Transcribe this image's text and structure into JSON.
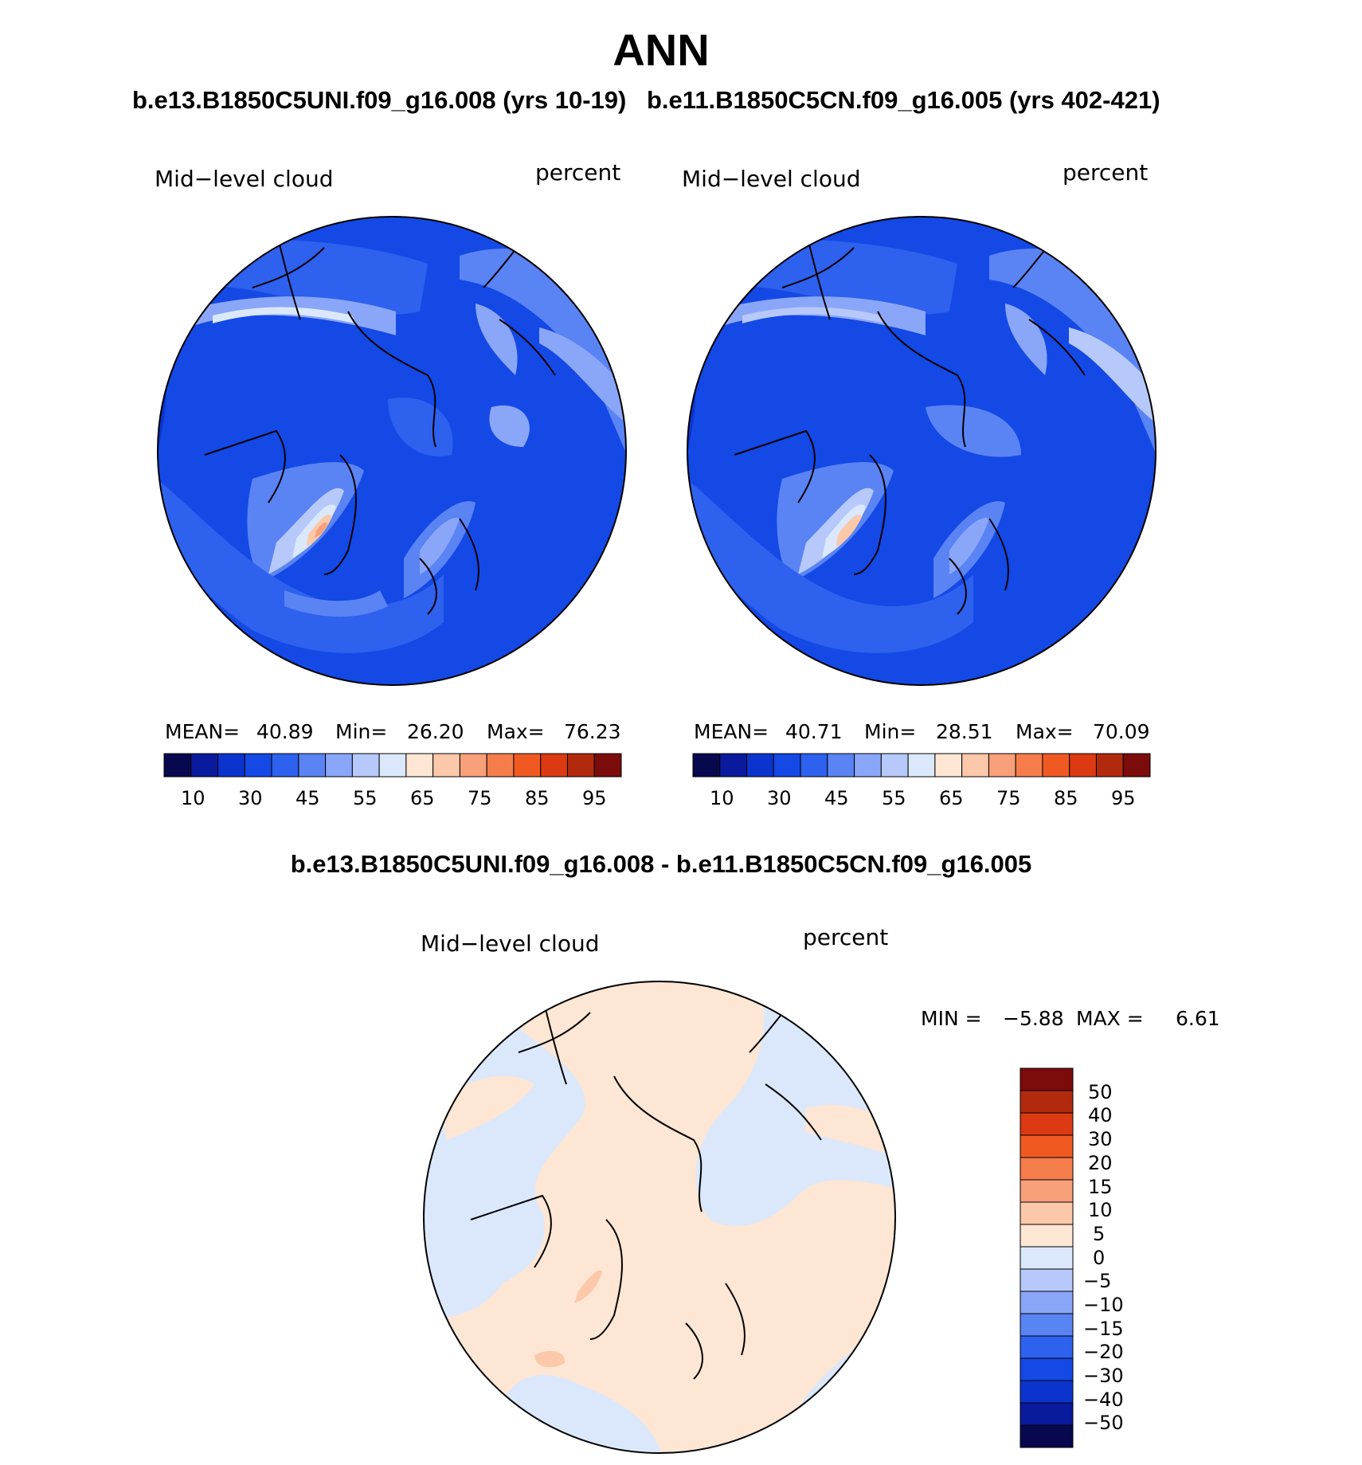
{
  "title": "ANN",
  "case_titles": {
    "left": "b.e13.B1850C5UNI.f09_g16.008 (yrs 10-19)",
    "right": "b.e11.B1850C5CN.f09_g16.005 (yrs 402-421)"
  },
  "diff_title": "b.e13.B1850C5UNI.f09_g16.008 - b.e11.B1850C5CN.f09_g16.005",
  "panels": [
    {
      "variable": "Mid−level cloud",
      "units": "percent",
      "stats": {
        "mean_label": "MEAN=",
        "mean": "40.89",
        "min_label": "Min=",
        "min": "26.20",
        "max_label": "Max=",
        "max": "76.23"
      }
    },
    {
      "variable": "Mid−level cloud",
      "units": "percent",
      "stats": {
        "mean_label": "MEAN=",
        "mean": "40.71",
        "min_label": "Min=",
        "min": "28.51",
        "max_label": "Max=",
        "max": "70.09"
      }
    }
  ],
  "diff_panel": {
    "variable": "Mid−level cloud",
    "units": "percent",
    "min_label": "MIN =",
    "min": "−5.88",
    "max_label": "MAX =",
    "max": "6.61"
  },
  "colorbar_abs": {
    "colors": [
      "#08084f",
      "#0a1a9c",
      "#0b34cf",
      "#1449e6",
      "#2e61ee",
      "#5a83f4",
      "#8aa6f8",
      "#b6c9fa",
      "#dbe8fb",
      "#fde6d3",
      "#fbc8aa",
      "#f7a07a",
      "#f57d4b",
      "#f05a22",
      "#dc3a12",
      "#b22a0e",
      "#7c0b0b"
    ],
    "tick_labels": [
      "10",
      "30",
      "45",
      "55",
      "65",
      "75",
      "85",
      "95"
    ]
  },
  "colorbar_diff": {
    "colors": [
      "#08084f",
      "#0a1a9c",
      "#0b34cf",
      "#1449e6",
      "#2e61ee",
      "#5a83f4",
      "#8aa6f8",
      "#b6c9fa",
      "#dbe8fb",
      "#fde6d3",
      "#fbc8aa",
      "#f7a07a",
      "#f57d4b",
      "#f05a22",
      "#dc3a12",
      "#b22a0e",
      "#7c0b0b"
    ],
    "tick_labels": [
      "50",
      "40",
      "30",
      "20",
      "15",
      "10",
      "5",
      "0",
      "−5",
      "−10",
      "−15",
      "−20",
      "−30",
      "−40",
      "−50"
    ]
  }
}
